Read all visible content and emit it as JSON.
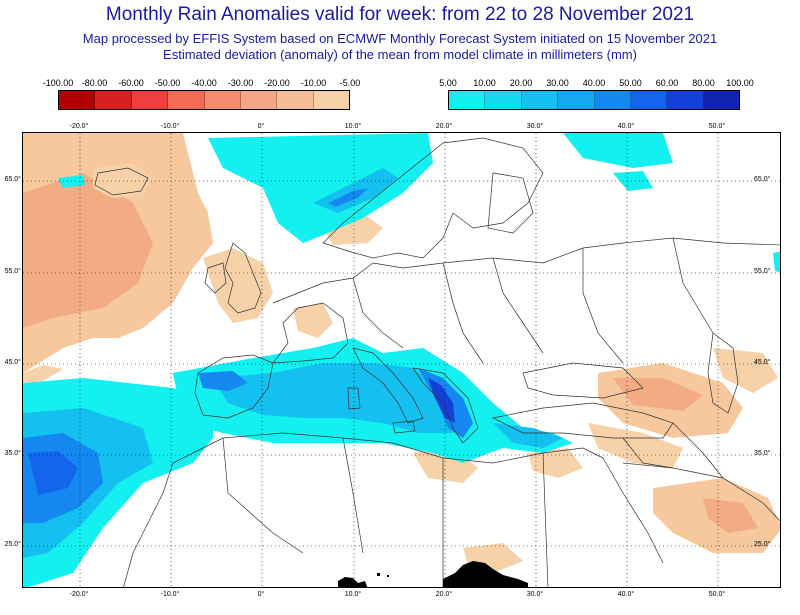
{
  "title": "Monthly Rain Anomalies valid for week: from 22 to 28 November 2021",
  "subtitle1": "Map processed by EFFIS System based on ECMWF Monthly Forecast System initiated on 15 November 2021",
  "subtitle2": "Estimated deviation (anomaly) of the mean from model climate in millimeters (mm)",
  "legend_negative": {
    "labels": [
      "-100.00",
      "-80.00",
      "-60.00",
      "-50.00",
      "-40.00",
      "-30.00",
      "-20.00",
      "-10.00",
      "-5.00"
    ],
    "colors": [
      "#b00000",
      "#d62020",
      "#ef4040",
      "#f56a55",
      "#f48a6e",
      "#f3a586",
      "#f5bd95",
      "#f7d2a8"
    ]
  },
  "legend_positive": {
    "labels": [
      "5.00",
      "10.00",
      "20.00",
      "30.00",
      "40.00",
      "50.00",
      "60.00",
      "80.00",
      "100.00"
    ],
    "colors": [
      "#14f0f0",
      "#14daf0",
      "#14c0f0",
      "#14a8f0",
      "#1488f0",
      "#1465ee",
      "#1440d8",
      "#1022b0"
    ]
  },
  "map": {
    "lon_labels": [
      "-20.0°",
      "-10.0°",
      "0°",
      "10.0°",
      "20.0°",
      "30.0°",
      "40.0°",
      "50.0°"
    ],
    "lat_labels": [
      "65.0°",
      "55.0°",
      "45.0°",
      "35.0°",
      "25.0°"
    ]
  }
}
